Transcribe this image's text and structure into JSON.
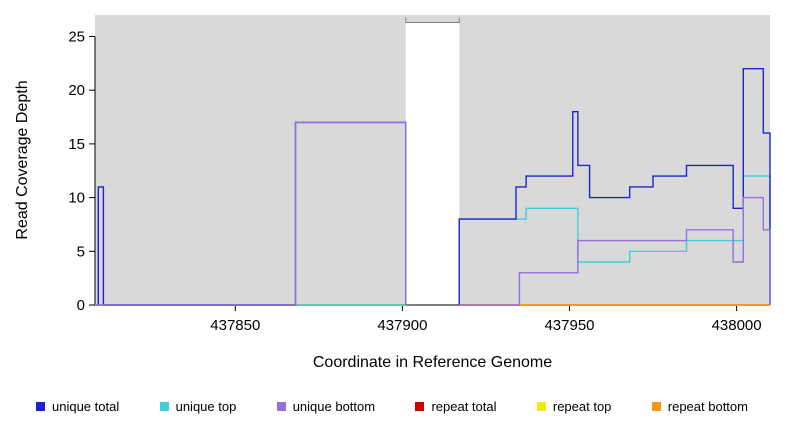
{
  "chart_data": {
    "type": "line",
    "subtype": "step-coverage",
    "title": "",
    "xlabel": "Coordinate in Reference Genome",
    "ylabel": "Read Coverage Depth",
    "xlim": [
      437808,
      438010
    ],
    "ylim": [
      0,
      27
    ],
    "xticks": [
      437850,
      437900,
      437950,
      438000
    ],
    "yticks": [
      0,
      5,
      10,
      15,
      20,
      25
    ],
    "grid": false,
    "legend_position": "bottom",
    "background": {
      "color": "#D9D9D9",
      "gap": {
        "x0": 437901,
        "x1": 437917,
        "top": 26.3,
        "border_color": "#808080"
      }
    },
    "series": [
      {
        "name": "repeat total",
        "color": "#CC0000",
        "groups": [
          [
            [
              437808,
              437901,
              0
            ]
          ],
          [
            [
              437917,
              438010,
              0
            ]
          ]
        ]
      },
      {
        "name": "repeat top",
        "color": "#F2E90C",
        "groups": [
          [
            [
              437808,
              437901,
              0
            ]
          ],
          [
            [
              437917,
              438010,
              0
            ]
          ]
        ]
      },
      {
        "name": "repeat bottom",
        "color": "#F59616",
        "groups": [
          [
            [
              437808,
              437901,
              0
            ]
          ],
          [
            [
              437917,
              438010,
              0
            ]
          ]
        ]
      },
      {
        "name": "unique top",
        "color": "#40CFD8",
        "groups": [
          [
            [
              437808,
              437901,
              0
            ]
          ],
          [
            [
              437917,
              437937,
              8
            ],
            [
              437937,
              437952.5,
              9
            ],
            [
              437952.5,
              437968,
              4
            ],
            [
              437968,
              437985,
              5
            ],
            [
              437985,
              438002,
              6
            ],
            [
              438002,
              438010,
              12
            ]
          ]
        ]
      },
      {
        "name": "unique total",
        "color": "#2222CC",
        "groups": [
          [
            [
              437809,
              437810.5,
              11
            ]
          ],
          [
            [
              437810.5,
              437868,
              0
            ],
            [
              437868,
              437901,
              17
            ]
          ],
          [
            [
              437917,
              437934,
              8
            ],
            [
              437934,
              437937,
              11
            ],
            [
              437937,
              437951,
              12
            ],
            [
              437951,
              437952.5,
              18
            ],
            [
              437952.5,
              437956,
              13
            ],
            [
              437956,
              437968,
              10
            ],
            [
              437968,
              437975,
              11
            ],
            [
              437975,
              437985,
              12
            ],
            [
              437985,
              437999,
              13
            ],
            [
              437999,
              438002,
              9
            ],
            [
              438002,
              438008,
              22
            ],
            [
              438008,
              438010,
              16
            ]
          ]
        ]
      },
      {
        "name": "unique bottom",
        "color": "#9370DB",
        "groups": [
          [
            [
              437808,
              437868,
              0
            ],
            [
              437868,
              437901,
              17
            ]
          ],
          [
            [
              437917,
              437935,
              0
            ],
            [
              437935,
              437952.5,
              3
            ],
            [
              437952.5,
              437985,
              6
            ],
            [
              437985,
              437999,
              7
            ],
            [
              437999,
              438002,
              4
            ],
            [
              438002,
              438008,
              10
            ],
            [
              438008,
              438010,
              7
            ]
          ]
        ]
      }
    ],
    "legend": [
      {
        "label": "unique total",
        "color": "#2222CC"
      },
      {
        "label": "unique top",
        "color": "#40CFD8"
      },
      {
        "label": "unique bottom",
        "color": "#9370DB"
      },
      {
        "label": "repeat total",
        "color": "#CC0000"
      },
      {
        "label": "repeat top",
        "color": "#F2E90C"
      },
      {
        "label": "repeat bottom",
        "color": "#F59616"
      }
    ]
  }
}
